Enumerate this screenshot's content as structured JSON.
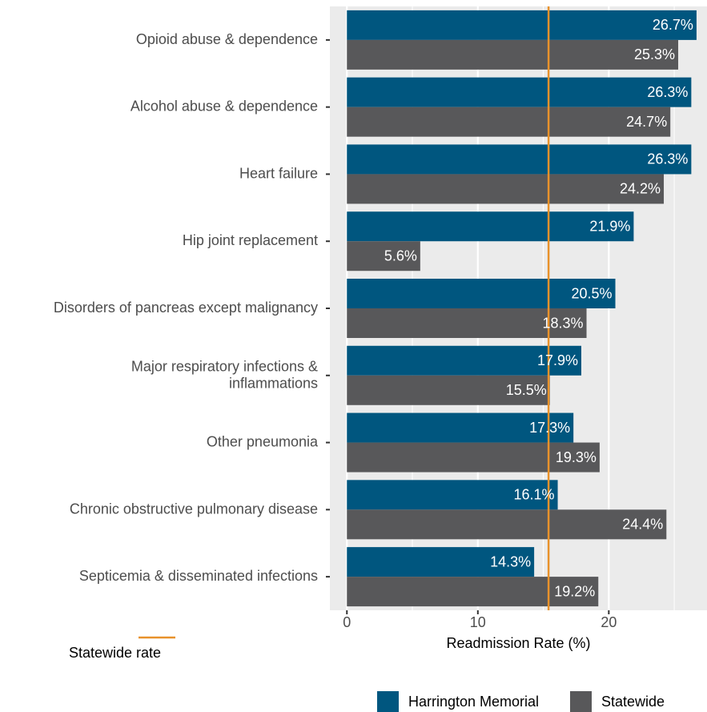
{
  "chart_data": {
    "type": "bar",
    "orientation": "horizontal",
    "categories": [
      "Opioid abuse & dependence",
      "Alcohol abuse & dependence",
      "Heart failure",
      "Hip joint replacement",
      "Disorders of pancreas except malignancy",
      "Major respiratory infections &\ninflammations",
      "Other pneumonia",
      "Chronic obstructive pulmonary disease",
      "Septicemia & disseminated infections"
    ],
    "series": [
      {
        "name": "Harrington Memorial",
        "color": "#00567f",
        "values": [
          26.7,
          26.3,
          26.3,
          21.9,
          20.5,
          17.9,
          17.3,
          16.1,
          14.3
        ],
        "value_labels": [
          "26.7%",
          "26.3%",
          "26.3%",
          "21.9%",
          "20.5%",
          "17.9%",
          "17.3%",
          "16.1%",
          "14.3%"
        ]
      },
      {
        "name": "Statewide",
        "color": "#58585a",
        "values": [
          25.3,
          24.7,
          24.2,
          5.6,
          18.3,
          15.5,
          19.3,
          24.4,
          19.2
        ],
        "value_labels": [
          "25.3%",
          "24.7%",
          "24.2%",
          "5.6%",
          "18.3%",
          "15.5%",
          "19.3%",
          "24.4%",
          "19.2%"
        ]
      }
    ],
    "reference_line": {
      "label": "Statewide rate",
      "value": 15.4,
      "color": "#e8922b"
    },
    "xlabel": "Readmission Rate (%)",
    "xlim": [
      -1.3,
      27.5
    ],
    "xticks": [
      0,
      10,
      20
    ],
    "xminor": [
      5,
      15,
      25
    ],
    "grid": true
  }
}
